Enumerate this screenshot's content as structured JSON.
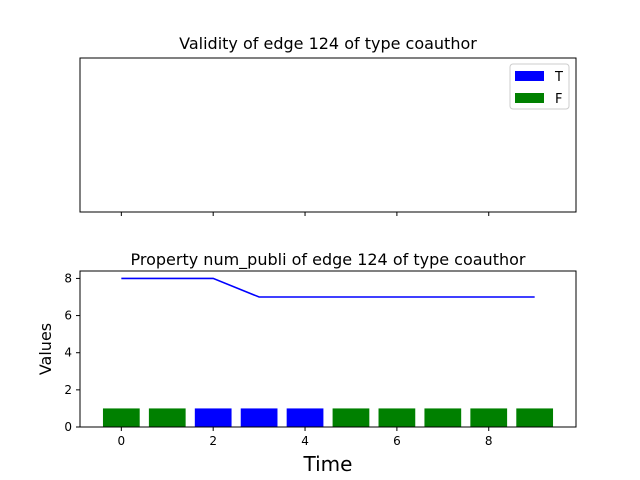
{
  "chart_data": [
    {
      "type": "bar",
      "title": "Validity of edge 124 of type coauthor",
      "xlabel": "",
      "ylabel": "",
      "xlim": [
        -0.9,
        9.9
      ],
      "legend": {
        "placement": "top-right",
        "entries": [
          {
            "label": "T",
            "color": "#0000ff"
          },
          {
            "label": "F",
            "color": "#008000"
          }
        ]
      },
      "x_ticks": [
        0,
        2,
        4,
        6,
        8
      ],
      "tick_labels_visible": false
    },
    {
      "type": "bar",
      "title": "Property num_publi of edge 124 of type coauthor",
      "xlabel": "Time",
      "ylabel": "Values",
      "xlim": [
        -0.9,
        9.9
      ],
      "ylim": [
        0,
        8.4
      ],
      "x_ticks": [
        0,
        2,
        4,
        6,
        8
      ],
      "x_tick_labels": [
        "0",
        "2",
        "4",
        "6",
        "8"
      ],
      "y_ticks": [
        0,
        2,
        4,
        6,
        8
      ],
      "y_tick_labels": [
        "0",
        "2",
        "4",
        "6",
        "8"
      ],
      "bars": {
        "x": [
          0,
          1,
          2,
          3,
          4,
          5,
          6,
          7,
          8,
          9
        ],
        "values": [
          1,
          1,
          1,
          1,
          1,
          1,
          1,
          1,
          1,
          1
        ],
        "validity": [
          "F",
          "F",
          "T",
          "T",
          "T",
          "F",
          "F",
          "F",
          "F",
          "F"
        ],
        "colors": {
          "T": "#0000ff",
          "F": "#008000"
        }
      },
      "series": [
        {
          "type": "line",
          "color": "#0000ff",
          "x": [
            0,
            1,
            2,
            3,
            4,
            5,
            6,
            7,
            8,
            9
          ],
          "values": [
            8,
            8,
            8,
            7,
            7,
            7,
            7,
            7,
            7,
            7
          ]
        }
      ]
    }
  ]
}
